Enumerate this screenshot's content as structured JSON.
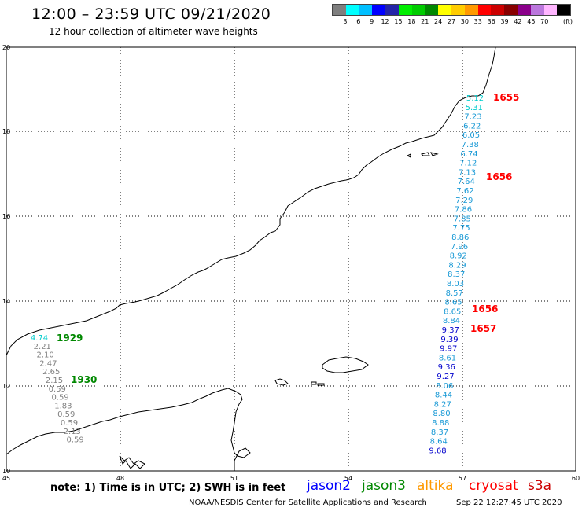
{
  "header": {
    "title": "12:00 – 23:59 UTC 09/21/2020",
    "subtitle": "12 hour collection of altimeter wave heights"
  },
  "legend": {
    "colors": [
      "#7f7f7f",
      "#00ffff",
      "#00bfff",
      "#0000ff",
      "#2424a8",
      "#00ee00",
      "#00cc00",
      "#008800",
      "#ffff00",
      "#ffcc00",
      "#ff9900",
      "#ff0000",
      "#cc0000",
      "#880000",
      "#8b008b",
      "#bb77dd",
      "#ffb6ff",
      "#000000"
    ],
    "labels": [
      "3",
      "6",
      "9",
      "12",
      "15",
      "18",
      "21",
      "24",
      "27",
      "30",
      "33",
      "36",
      "39",
      "42",
      "45",
      "70"
    ],
    "unit": "(ft)"
  },
  "axes": {
    "x_labels": [
      "45",
      "48",
      "51",
      "54",
      "57",
      "60"
    ],
    "y_labels": [
      "10",
      "12",
      "14",
      "16",
      "18",
      "20"
    ]
  },
  "tracks": [
    {
      "name": "east",
      "values": [
        "5.12",
        "5.31",
        "7.23",
        "6.22",
        "6.05",
        "7.38",
        "6.74",
        "7.12",
        "7.13",
        "7.64",
        "7.62",
        "7.29",
        "7.86",
        "7.85",
        "7.75",
        "8.86",
        "7.96",
        "8.92",
        "8.29",
        "8.37",
        "8.03",
        "8.57",
        "8.65",
        "8.65",
        "8.84",
        "9.37",
        "9.39",
        "9.97",
        "8.61",
        "9.36",
        "9.27",
        "8.06",
        "8.44",
        "8.27",
        "8.80",
        "8.88",
        "8.37",
        "8.64",
        "9.68"
      ]
    },
    {
      "name": "west",
      "values": [
        "4.74",
        "2.21",
        "2.10",
        "2.47",
        "2.65",
        "2.15",
        "0.59",
        "0.59",
        "1.83",
        "0.59",
        "0.59",
        "2.13",
        "0.59"
      ]
    }
  ],
  "time_labels": [
    {
      "text": "1655",
      "color": "#ff0000"
    },
    {
      "text": "1656",
      "color": "#ff0000"
    },
    {
      "text": "1656",
      "color": "#ff0000"
    },
    {
      "text": "1657",
      "color": "#ff0000"
    },
    {
      "text": "1929",
      "color": "#008800"
    },
    {
      "text": "1930",
      "color": "#008800"
    }
  ],
  "footer": {
    "note": "note: 1) Time is in UTC; 2) SWH is in feet",
    "satellites": [
      {
        "name": "jason2",
        "color": "#0000ff"
      },
      {
        "name": "jason3",
        "color": "#008800"
      },
      {
        "name": "altika",
        "color": "#ff9900"
      },
      {
        "name": "cryosat",
        "color": "#ff0000"
      },
      {
        "name": "s3a",
        "color": "#cc0000"
      }
    ],
    "credit": "NOAA/NESDIS Center for Satellite Applications and Research",
    "timestamp": "Sep 22 12:27:45 UTC 2020"
  }
}
